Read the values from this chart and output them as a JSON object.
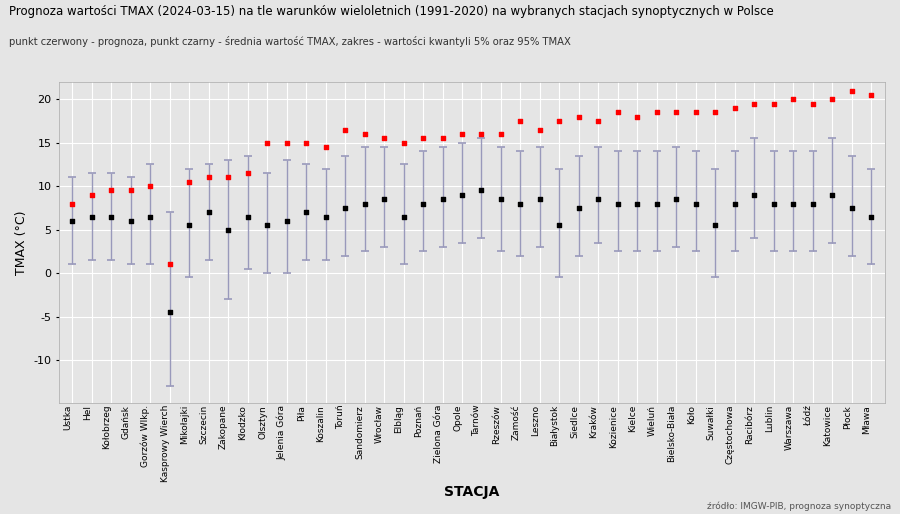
{
  "title": "Prognoza wartości TMAX (2024-03-15) na tle warunków wieloletnich (1991-2020) na wybranych stacjach synoptycznych w Polsce",
  "subtitle": "punkt czerwony - prognoza, punkt czarny - średnia wartość TMAX, zakres - wartości kwantyli 5% oraz 95% TMAX",
  "xlabel": "STACJA",
  "ylabel": "TMAX (°C)",
  "source": "źródło: IMGW-PIB, prognoza synoptyczna",
  "stations": [
    "Ustka",
    "Hel",
    "Kołobrzeg",
    "Gdańsk",
    "Gorzów Wlkp.",
    "Kasprowy Wierch",
    "Mikołajki",
    "Szczecin",
    "Zakopane",
    "Kłodzko",
    "Olsztyn",
    "Jelenia Góra",
    "Piła",
    "Koszalin",
    "Toruń",
    "Sandomierz",
    "Wrocław",
    "Elbląg",
    "Poznań",
    "Zielona Góra",
    "Opole",
    "Tarnów",
    "Rzeszów",
    "Zamość",
    "Leszno",
    "Białystok",
    "Siedlce",
    "Kraków",
    "Kozienice",
    "Kielce",
    "Wieluń",
    "Bielsko-Biała",
    "Koło",
    "Suwałki",
    "Częstochowa",
    "Racibórz",
    "Lublin",
    "Warszawa",
    "Łódź",
    "Katowice",
    "Płock",
    "Mława"
  ],
  "mean": [
    6.0,
    6.5,
    6.5,
    6.0,
    6.5,
    -4.5,
    5.5,
    7.0,
    5.0,
    6.5,
    5.5,
    6.0,
    7.0,
    6.5,
    7.5,
    8.0,
    8.5,
    6.5,
    8.0,
    8.5,
    9.0,
    9.5,
    8.5,
    8.0,
    8.5,
    5.5,
    7.5,
    8.5,
    8.0,
    8.0,
    8.0,
    8.5,
    8.0,
    5.5,
    8.0,
    9.0,
    8.0,
    8.0,
    8.0,
    9.0,
    7.5,
    6.5
  ],
  "q05": [
    1.0,
    1.5,
    1.5,
    1.0,
    1.0,
    -13.0,
    -0.5,
    1.5,
    -3.0,
    0.5,
    0.0,
    0.0,
    1.5,
    1.5,
    2.0,
    2.5,
    3.0,
    1.0,
    2.5,
    3.0,
    3.5,
    4.0,
    2.5,
    2.0,
    3.0,
    -0.5,
    2.0,
    3.5,
    2.5,
    2.5,
    2.5,
    3.0,
    2.5,
    -0.5,
    2.5,
    4.0,
    2.5,
    2.5,
    2.5,
    3.5,
    2.0,
    1.0
  ],
  "q95": [
    11.0,
    11.5,
    11.5,
    11.0,
    12.5,
    7.0,
    12.0,
    12.5,
    13.0,
    13.5,
    11.5,
    13.0,
    12.5,
    12.0,
    13.5,
    14.5,
    14.5,
    12.5,
    14.0,
    14.5,
    15.0,
    15.5,
    14.5,
    14.0,
    14.5,
    12.0,
    13.5,
    14.5,
    14.0,
    14.0,
    14.0,
    14.5,
    14.0,
    12.0,
    14.0,
    15.5,
    14.0,
    14.0,
    14.0,
    15.5,
    13.5,
    12.0
  ],
  "forecast": [
    8.0,
    9.0,
    9.5,
    9.5,
    10.0,
    1.0,
    10.5,
    11.0,
    11.0,
    11.5,
    15.0,
    15.0,
    15.0,
    14.5,
    16.5,
    16.0,
    15.5,
    15.0,
    15.5,
    15.5,
    16.0,
    16.0,
    16.0,
    17.5,
    16.5,
    17.5,
    18.0,
    17.5,
    18.5,
    18.0,
    18.5,
    18.5,
    18.5,
    18.5,
    19.0,
    19.5,
    19.5,
    20.0,
    19.5,
    20.0,
    21.0,
    20.5
  ],
  "bg_color": "#e5e5e5",
  "grid_color": "#ffffff",
  "errorbar_color": "#9999bb",
  "mean_color": "#000000",
  "forecast_color": "#ff0000",
  "ylim": [
    -15,
    22
  ],
  "yticks": [
    -10,
    -5,
    0,
    5,
    10,
    15,
    20
  ]
}
